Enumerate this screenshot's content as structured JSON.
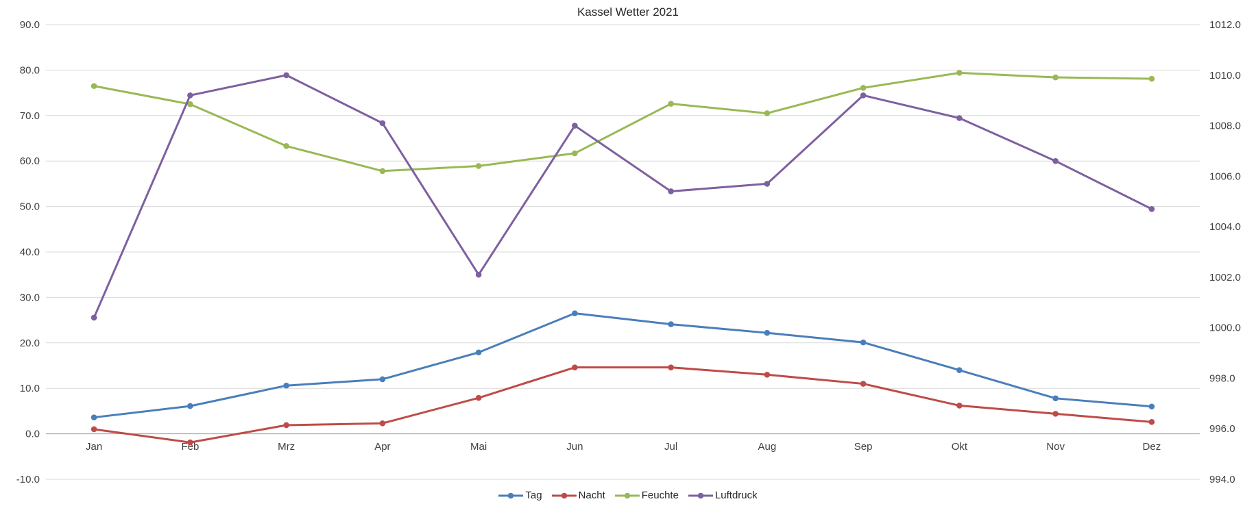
{
  "title": "Kassel Wetter 2021",
  "chart_data": {
    "type": "line",
    "title": "Kassel Wetter 2021",
    "categories": [
      "Jan",
      "Feb",
      "Mrz",
      "Apr",
      "Mai",
      "Jun",
      "Jul",
      "Aug",
      "Sep",
      "Okt",
      "Nov",
      "Dez"
    ],
    "series": [
      {
        "name": "Tag",
        "y_axis": "left",
        "color": "#4a7ebb",
        "values": [
          3.6,
          6.1,
          10.6,
          12.0,
          17.9,
          26.5,
          24.1,
          22.2,
          20.1,
          14.0,
          7.8,
          6.0
        ]
      },
      {
        "name": "Nacht",
        "y_axis": "left",
        "color": "#be4b48",
        "values": [
          1.0,
          -1.9,
          1.9,
          2.3,
          7.9,
          14.6,
          14.6,
          13.0,
          11.0,
          6.2,
          4.4,
          2.6
        ]
      },
      {
        "name": "Feuchte",
        "y_axis": "left",
        "color": "#98b954",
        "values": [
          76.5,
          72.5,
          63.3,
          57.8,
          58.9,
          61.7,
          72.6,
          70.5,
          76.1,
          79.4,
          78.4,
          78.1
        ]
      },
      {
        "name": "Luftdruck",
        "y_axis": "right",
        "color": "#7d60a0",
        "values": [
          1000.4,
          1009.2,
          1010.0,
          1008.1,
          1002.1,
          1008.0,
          1005.4,
          1005.7,
          1009.2,
          1008.3,
          1006.6,
          1004.7
        ]
      }
    ],
    "left_axis": {
      "min": -10.0,
      "max": 90.0,
      "step": 10.0,
      "tick_labels": [
        "90.0",
        "80.0",
        "70.0",
        "60.0",
        "50.0",
        "40.0",
        "30.0",
        "20.0",
        "10.0",
        "0.0",
        "-10.0"
      ]
    },
    "right_axis": {
      "min": 994.0,
      "max": 1012.0,
      "step": 2.0,
      "tick_labels": [
        "1012.0",
        "1010.0",
        "1008.0",
        "1006.0",
        "1004.0",
        "1002.0",
        "1000.0",
        "998.0",
        "996.0",
        "994.0"
      ]
    },
    "grid": true,
    "gridline_color": "#d9d9d9",
    "zero_line_color": "#9b9b9b",
    "legend_position": "bottom"
  }
}
